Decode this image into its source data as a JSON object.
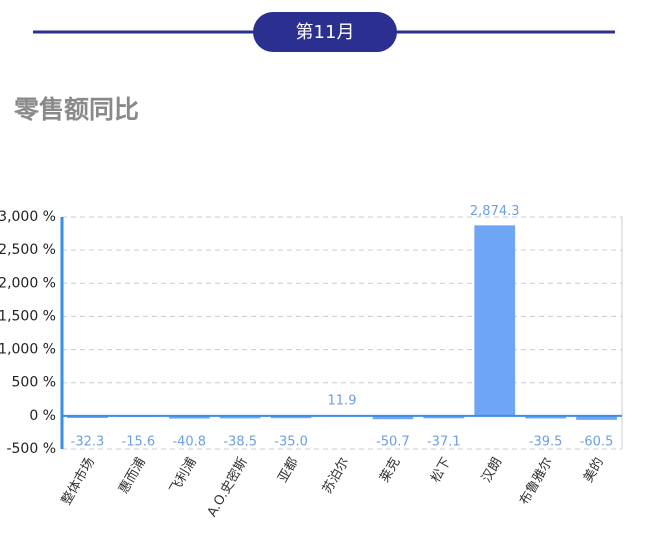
{
  "header": {
    "tab": "第11月"
  },
  "chart_data": {
    "type": "bar",
    "title": "零售额同比",
    "categories": [
      "整体市场",
      "惠而浦",
      "飞利浦",
      "A.O.史密斯",
      "亚都",
      "苏泊尔",
      "莱克",
      "松下",
      "汉朗",
      "布鲁雅尔",
      "美的"
    ],
    "values": [
      -32.3,
      -15.6,
      -40.8,
      -38.5,
      -35.0,
      11.9,
      -50.7,
      -37.1,
      2874.3,
      -39.5,
      -60.5
    ],
    "value_labels": [
      "-32.3",
      "-15.6",
      "-40.8",
      "-38.5",
      "-35.0",
      "11.9",
      "-50.7",
      "-37.1",
      "2,874.3",
      "-39.5",
      "-60.5"
    ],
    "color": "#6ea6f5",
    "ylim": [
      -500,
      3000
    ],
    "yticks": [
      {
        "value": -500,
        "label": "-500 %"
      },
      {
        "value": 0,
        "label": "0 %"
      },
      {
        "value": 500,
        "label": "500 %"
      },
      {
        "value": 1000,
        "label": "1,000 %"
      },
      {
        "value": 1500,
        "label": "1,500 %"
      },
      {
        "value": 2000,
        "label": "2,000 %"
      },
      {
        "value": 2500,
        "label": "2,500 %"
      },
      {
        "value": 3000,
        "label": "3,000 %"
      }
    ],
    "grid": true
  }
}
